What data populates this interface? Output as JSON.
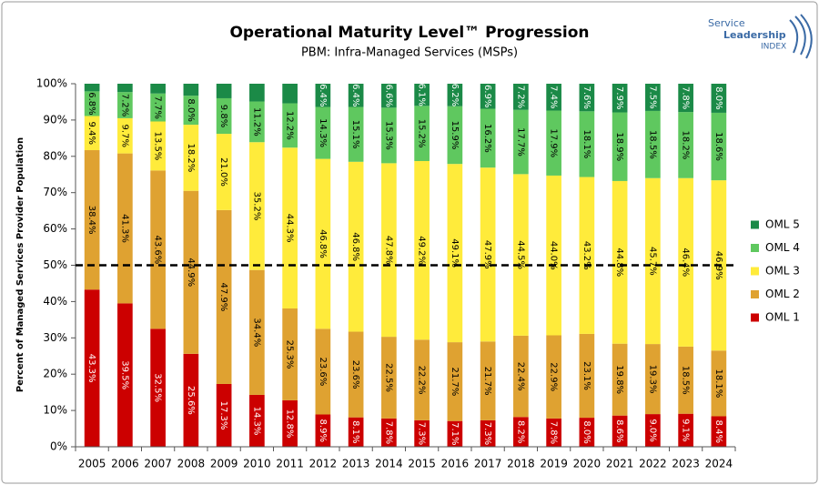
{
  "chart_data": {
    "type": "stacked_bar",
    "title": "Operational Maturity Level™ Progression",
    "subtitle": "PBM: Infra-Managed Services (MSPs)",
    "y_label": "Percent of Managed Services Provider Population",
    "logo_text": [
      "Service",
      "Leadership",
      "INDEX"
    ],
    "categories": [
      "2005",
      "2006",
      "2007",
      "2008",
      "2009",
      "2010",
      "2011",
      "2012",
      "2013",
      "2014",
      "2015",
      "2016",
      "2017",
      "2018",
      "2019",
      "2020",
      "2021",
      "2022",
      "2023",
      "2024"
    ],
    "ylim": [
      0,
      100
    ],
    "yticks": [
      {
        "value": 0,
        "label": "0%"
      },
      {
        "value": 10,
        "label": "10%"
      },
      {
        "value": 20,
        "label": "20%"
      },
      {
        "value": 30,
        "label": "30%"
      },
      {
        "value": 40,
        "label": "40%"
      },
      {
        "value": 50,
        "label": "50%"
      },
      {
        "value": 60,
        "label": "60%"
      },
      {
        "value": 70,
        "label": "70%"
      },
      {
        "value": 80,
        "label": "80%"
      },
      {
        "value": 90,
        "label": "90%"
      },
      {
        "value": 100,
        "label": "100%"
      }
    ],
    "reference_line": 50,
    "legend_position": "right",
    "series": [
      {
        "name": "OML 1",
        "color": "#cc0000",
        "label_color": "#ffffff",
        "values": [
          43.3,
          39.5,
          32.5,
          25.6,
          17.3,
          14.3,
          12.8,
          8.9,
          8.1,
          7.8,
          7.3,
          7.1,
          7.3,
          8.2,
          7.8,
          8.0,
          8.6,
          9.0,
          9.1,
          8.4
        ],
        "value_labels": [
          "43.3%",
          "39.5%",
          "32.5%",
          "25.6%",
          "17.3%",
          "14.3%",
          "12.8%",
          "8.9%",
          "8.1%",
          "7.8%",
          "7.3%",
          "7.1%",
          "7.3%",
          "8.2%",
          "7.8%",
          "8.0%",
          "8.6%",
          "9.0%",
          "9.1%",
          "8.4%"
        ]
      },
      {
        "name": "OML 2",
        "color": "#dfa231",
        "label_color": "#000000",
        "values": [
          38.4,
          41.3,
          43.6,
          44.9,
          47.9,
          34.4,
          25.3,
          23.6,
          23.6,
          22.5,
          22.2,
          21.7,
          21.7,
          22.4,
          22.9,
          23.1,
          19.8,
          19.3,
          18.5,
          18.1
        ],
        "value_labels": [
          "38.4%",
          "41.3%",
          "43.6%",
          "44.9%",
          "47.9%",
          "34.4%",
          "25.3%",
          "23.6%",
          "23.6%",
          "22.5%",
          "22.2%",
          "21.7%",
          "21.7%",
          "22.4%",
          "22.9%",
          "23.1%",
          "19.8%",
          "19.3%",
          "18.5%",
          "18.1%"
        ]
      },
      {
        "name": "OML 3",
        "color": "#ffeb3b",
        "label_color": "#000000",
        "values": [
          9.4,
          9.7,
          13.5,
          18.2,
          21.0,
          35.2,
          44.3,
          46.8,
          46.8,
          47.8,
          49.2,
          49.1,
          47.9,
          44.5,
          44.0,
          43.2,
          44.8,
          45.7,
          46.4,
          46.9
        ],
        "value_labels": [
          "9.4%",
          "9.7%",
          "13.5%",
          "18.2%",
          "21.0%",
          "35.2%",
          "44.3%",
          "46.8%",
          "46.8%",
          "47.8%",
          "49.2%",
          "49.1%",
          "47.9%",
          "44.5%",
          "44.0%",
          "43.2%",
          "44.8%",
          "45.7%",
          "46.4%",
          "46.9%"
        ]
      },
      {
        "name": "OML 4",
        "color": "#5fc85f",
        "label_color": "#000000",
        "values": [
          6.8,
          7.2,
          7.7,
          8.0,
          9.8,
          11.2,
          12.2,
          14.3,
          15.1,
          15.3,
          15.2,
          15.9,
          16.2,
          17.7,
          17.9,
          18.1,
          18.9,
          18.5,
          18.2,
          18.6
        ],
        "value_labels": [
          "6.8%",
          "7.2%",
          "7.7%",
          "8.0%",
          "9.8%",
          "11.2%",
          "12.2%",
          "14.3%",
          "15.1%",
          "15.3%",
          "15.2%",
          "15.9%",
          "16.2%",
          "17.7%",
          "17.9%",
          "18.1%",
          "18.9%",
          "18.5%",
          "18.2%",
          "18.6%"
        ]
      },
      {
        "name": "OML 5",
        "color": "#1b8a47",
        "label_color": "#ffffff",
        "values": [
          2.1,
          2.3,
          2.7,
          3.3,
          4.0,
          4.9,
          5.4,
          6.4,
          6.4,
          6.6,
          6.1,
          6.2,
          6.9,
          7.2,
          7.4,
          7.6,
          7.9,
          7.5,
          7.8,
          8.0
        ],
        "value_labels": [
          null,
          null,
          null,
          null,
          null,
          null,
          null,
          "6.4%",
          "6.4%",
          "6.6%",
          "6.1%",
          "6.2%",
          "6.9%",
          "7.2%",
          "7.4%",
          "7.6%",
          "7.9%",
          "7.5%",
          "7.8%",
          "8.0%"
        ]
      }
    ]
  }
}
